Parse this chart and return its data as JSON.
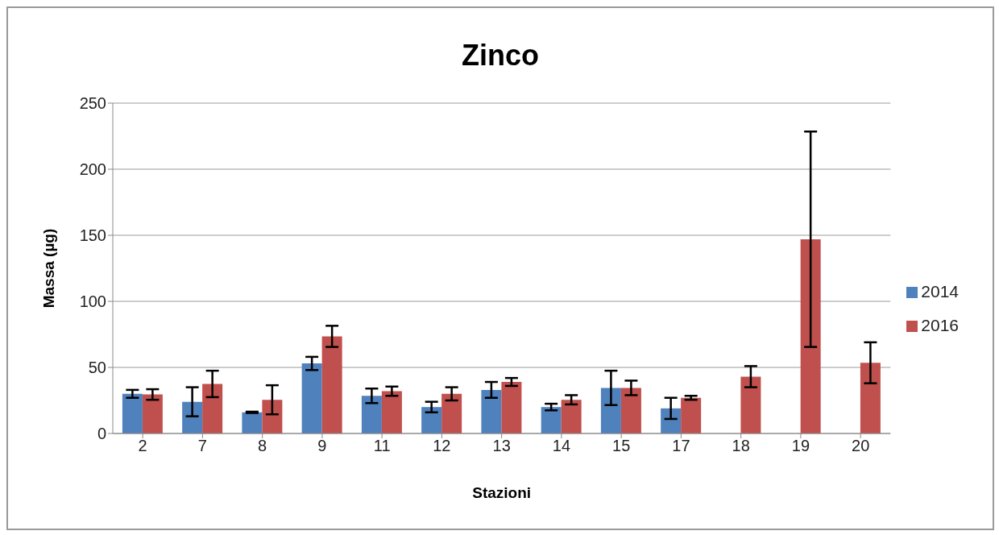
{
  "chart_data": {
    "type": "bar",
    "title": "Zinco",
    "xlabel": "Stazioni",
    "ylabel": "Massa (µg)",
    "categories": [
      "2",
      "7",
      "8",
      "9",
      "11",
      "12",
      "13",
      "14",
      "15",
      "17",
      "18",
      "19",
      "20"
    ],
    "series": [
      {
        "name": "2014",
        "color": "#4f81bd",
        "values": [
          30,
          24,
          16,
          53,
          28.5,
          20,
          33,
          20,
          34.5,
          19,
          null,
          null,
          null
        ],
        "errors": [
          3,
          11,
          0.5,
          5,
          5.5,
          4,
          6,
          2.5,
          13,
          8,
          null,
          null,
          null
        ]
      },
      {
        "name": "2016",
        "color": "#c0504d",
        "values": [
          29.5,
          37.5,
          25.5,
          73.5,
          32,
          30,
          39,
          25.5,
          34.5,
          27,
          43,
          147,
          53.5
        ],
        "errors": [
          4,
          10,
          11,
          8,
          3.5,
          5,
          3,
          3.5,
          5.5,
          1.5,
          8,
          81.5,
          15.5
        ]
      }
    ],
    "ylim": [
      0,
      250
    ],
    "yticks": [
      0,
      50,
      100,
      150,
      200,
      250
    ],
    "grid": "y",
    "legend": "right"
  }
}
